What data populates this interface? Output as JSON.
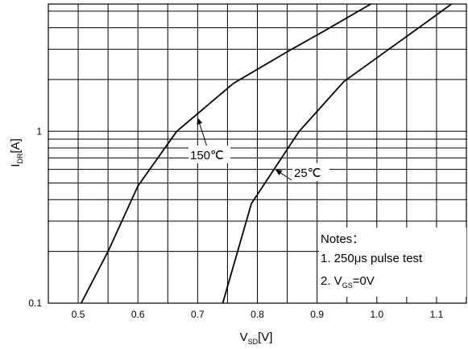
{
  "chart_data": {
    "type": "line",
    "title": "",
    "xlabel": {
      "main": "V",
      "sub": "SD",
      "unit": "[V]"
    },
    "ylabel": {
      "main": "I",
      "sub": "DR",
      "unit": "[A]"
    },
    "xlim": [
      0.45,
      1.15
    ],
    "ylim": [
      0.1,
      5.5
    ],
    "yscale": "log",
    "grid": true,
    "x_ticks": [
      0.5,
      0.6,
      0.7,
      0.8,
      0.9,
      1.0,
      1.1
    ],
    "x_tick_labels": [
      "0.5",
      "0.6",
      "0.7",
      "0.8",
      "0.9",
      "1.0",
      "1.1"
    ],
    "y_ticks": [
      0.1,
      1
    ],
    "y_tick_labels": [
      "0.1",
      "1"
    ],
    "series": [
      {
        "name": "150℃",
        "x": [
          0.505,
          0.55,
          0.6,
          0.665,
          0.76,
          0.85,
          0.91,
          0.99
        ],
        "y": [
          0.1,
          0.2,
          0.48,
          1.0,
          1.9,
          2.9,
          3.8,
          5.5
        ]
      },
      {
        "name": "25℃",
        "x": [
          0.742,
          0.79,
          0.87,
          0.945,
          1.02,
          1.07,
          1.125
        ],
        "y": [
          0.1,
          0.38,
          1.0,
          1.95,
          3.0,
          4.0,
          5.5
        ]
      }
    ],
    "annotations": [
      {
        "text": "150℃",
        "series": "150℃",
        "point": [
          0.7,
          1.2
        ]
      },
      {
        "text": "25℃",
        "series": "25℃",
        "point": [
          0.83,
          0.6
        ]
      }
    ],
    "notes": {
      "title": "Notes：",
      "line1": "1. 250μs pulse test",
      "line2_prefix": "2. V",
      "line2_sub": "GS",
      "line2_suffix": "=0V"
    }
  }
}
